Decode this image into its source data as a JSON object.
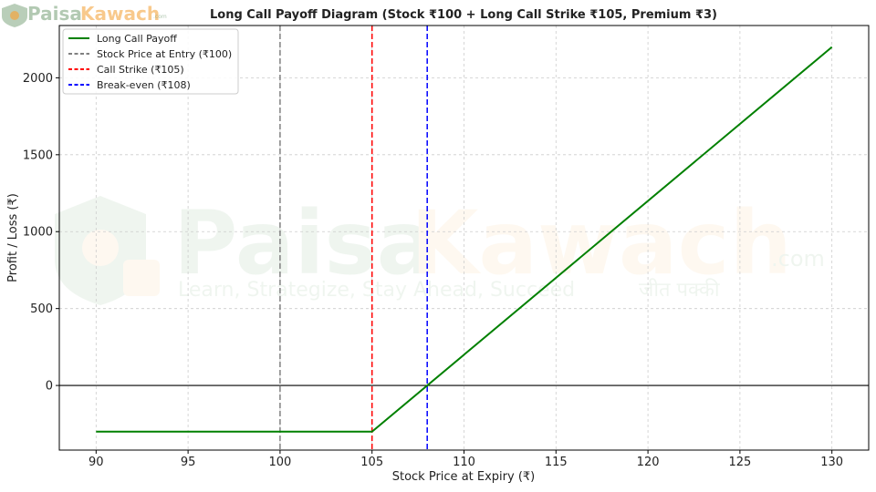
{
  "logo": {
    "text_a": "Paisa",
    "text_b": "Kawach",
    "suffix": ".com",
    "tagline": "Learn, Strategize, Stay Ahead, Succeed",
    "hindi": "जीत पक्की"
  },
  "colors": {
    "payoff": "#008000",
    "entry": "#808080",
    "strike": "#ff0000",
    "breakeven": "#0000ff",
    "grid": "#cccccc",
    "zero_line": "#000000",
    "logo_green": "#7fa67f",
    "logo_orange": "#f4a640"
  },
  "chart_data": {
    "type": "line",
    "title": "Long Call Payoff Diagram (Stock ₹100 + Long Call Strike ₹105, Premium ₹3)",
    "xlabel": "Stock Price at Expiry (₹)",
    "ylabel": "Profit / Loss (₹)",
    "xlim": [
      88,
      132
    ],
    "ylim": [
      -420,
      2340
    ],
    "x_ticks": [
      90,
      95,
      100,
      105,
      110,
      115,
      120,
      125,
      130
    ],
    "y_ticks": [
      0,
      500,
      1000,
      1500,
      2000
    ],
    "grid": true,
    "legend_position": "top-left",
    "series": [
      {
        "name": "Long Call Payoff",
        "style": "solid",
        "x": [
          90,
          105,
          130
        ],
        "y": [
          -300,
          -300,
          2200
        ]
      }
    ],
    "vlines": [
      {
        "name": "Stock Price at Entry (₹100)",
        "x": 100,
        "style": "dashed",
        "color_key": "entry"
      },
      {
        "name": "Call Strike (₹105)",
        "x": 105,
        "style": "dashed",
        "color_key": "strike"
      },
      {
        "name": "Break-even (₹108)",
        "x": 108,
        "style": "dashed",
        "color_key": "breakeven"
      }
    ],
    "hline": {
      "y": 0,
      "style": "solid"
    }
  }
}
